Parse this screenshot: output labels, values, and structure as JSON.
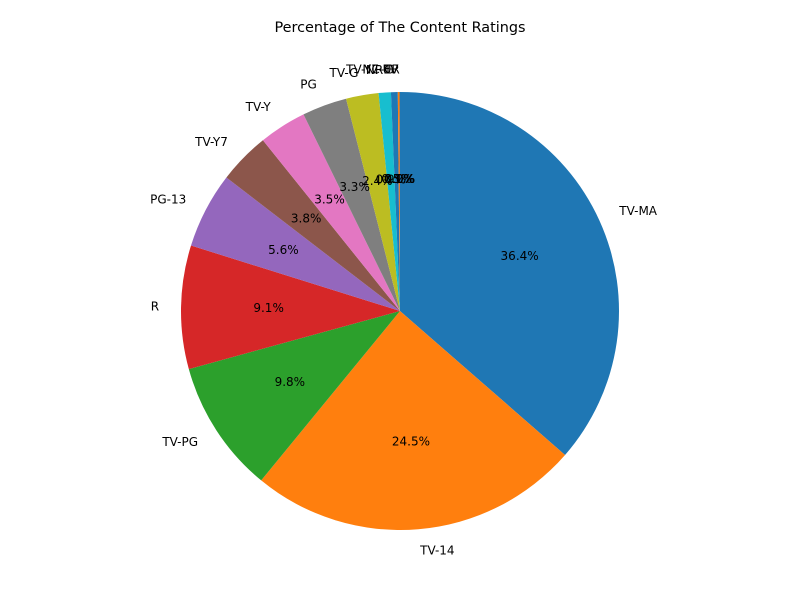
{
  "chart_data": {
    "type": "pie",
    "title": "Percentage of The Content Ratings",
    "start_angle_deg": 90,
    "direction": "clockwise",
    "slices": [
      {
        "label": "TV-MA",
        "value": 36.4,
        "pct_text": "36.4%",
        "color": "#1f77b4"
      },
      {
        "label": "TV-14",
        "value": 24.5,
        "pct_text": "24.5%",
        "color": "#ff7f0e"
      },
      {
        "label": "TV-PG",
        "value": 9.8,
        "pct_text": "9.8%",
        "color": "#2ca02c"
      },
      {
        "label": "R",
        "value": 9.1,
        "pct_text": "9.1%",
        "color": "#d62728"
      },
      {
        "label": "PG-13",
        "value": 5.6,
        "pct_text": "5.6%",
        "color": "#9467bd"
      },
      {
        "label": "TV-Y7",
        "value": 3.8,
        "pct_text": "3.8%",
        "color": "#8c564b"
      },
      {
        "label": "TV-Y",
        "value": 3.5,
        "pct_text": "3.5%",
        "color": "#e377c2"
      },
      {
        "label": "PG",
        "value": 3.3,
        "pct_text": "3.3%",
        "color": "#7f7f7f"
      },
      {
        "label": "TV-G",
        "value": 2.4,
        "pct_text": "2.4%",
        "color": "#bcbd22"
      },
      {
        "label": "NR",
        "value": 0.9,
        "pct_text": "0.9%",
        "color": "#17becf"
      },
      {
        "label": "G",
        "value": 0.5,
        "pct_text": "0.5%",
        "color": "#1f77b4"
      },
      {
        "label": "TV-Y7-FV",
        "value": 0.1,
        "pct_text": "0.1%",
        "color": "#ff7f0e"
      },
      {
        "label": "NC-17",
        "value": 0.03,
        "pct_text": "0.0%",
        "color": "#2ca02c"
      },
      {
        "label": "UR",
        "value": 0.03,
        "pct_text": "0.0%",
        "color": "#d62728"
      }
    ]
  }
}
